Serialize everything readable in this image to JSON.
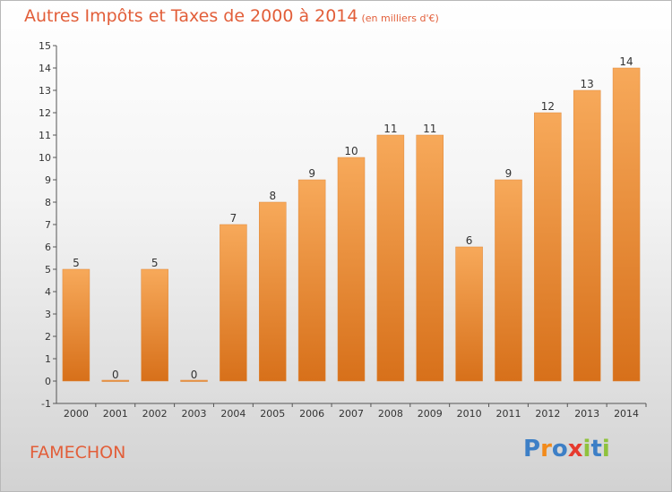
{
  "title": "Autres Impôts et Taxes de 2000 à 2014",
  "unit": "(en milliers d'€)",
  "commune": "FAMECHON",
  "brand": {
    "letters": [
      "P",
      "r",
      "o",
      "x",
      "i",
      "t",
      "i"
    ],
    "colors": [
      "#3d7fc6",
      "#f28a1a",
      "#3d7fc6",
      "#e63a2e",
      "#8fc23d",
      "#3d7fc6",
      "#8fc23d"
    ]
  },
  "colors": {
    "bar_top": "#f7a95a",
    "bar_bottom": "#d7701a",
    "accent": "#e25e39"
  },
  "chart_data": {
    "type": "bar",
    "categories": [
      "2000",
      "2001",
      "2002",
      "2003",
      "2004",
      "2005",
      "2006",
      "2007",
      "2008",
      "2009",
      "2010",
      "2011",
      "2012",
      "2013",
      "2014"
    ],
    "values": [
      5,
      0,
      5,
      0,
      7,
      8,
      9,
      10,
      11,
      11,
      6,
      9,
      12,
      13,
      14
    ],
    "ylim": [
      -1,
      15
    ],
    "yticks": [
      -1,
      0,
      1,
      2,
      3,
      4,
      5,
      6,
      7,
      8,
      9,
      10,
      11,
      12,
      13,
      14,
      15
    ],
    "grid": false,
    "xlabel": "",
    "ylabel": ""
  }
}
